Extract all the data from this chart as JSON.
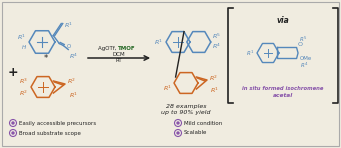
{
  "bg_color": "#f0ece0",
  "border_color": "#aaaaaa",
  "blue_color": "#5588bb",
  "orange_color": "#cc6622",
  "purple_color": "#8855aa",
  "green_color": "#226622",
  "dark_color": "#222222",
  "arrow_label_black": "AgOTf, ",
  "arrow_label_green": "TMOF",
  "arrow_label2": "DCM",
  "arrow_label3": "RT",
  "product_label1": "28 examples",
  "product_label2": "up to 90% yield",
  "via_label": "via",
  "acetal_label": "in situ formed isochromene",
  "acetal_label2": "acetal",
  "bullet1": "Easily accessible precursors",
  "bullet2": "Broad substrate scope",
  "bullet3": "Mild condition",
  "bullet4": "Scalable",
  "ome_label": "OMe"
}
